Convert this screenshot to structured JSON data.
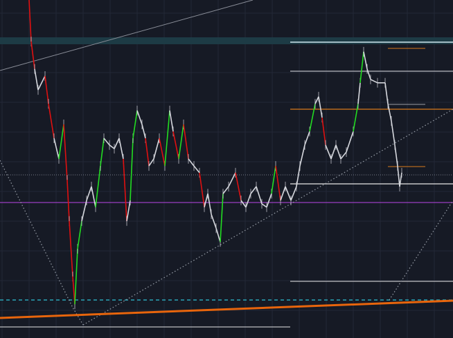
{
  "colors": {
    "background": "#161a25",
    "grid": "#232837",
    "price_line": "#d6d8de",
    "up": "#22dd22",
    "down": "#e01010",
    "zone_band": "#1d3b45",
    "zone_line": "#cfe8f0",
    "orange": "#e8650c",
    "orange_thin": "#d97a1a",
    "purple": "#9a3fc0",
    "teal_dashed": "#2aa6b8",
    "dotted": "#9aa0aa",
    "white_level": "#e8e8e8",
    "grey_level": "#9da0a8"
  },
  "chart_data": {
    "type": "line",
    "title": "",
    "xlabel": "",
    "ylabel": "",
    "grid": true,
    "legend": "none",
    "ylim": [
      0,
      100
    ],
    "xlim": [
      0,
      654
    ],
    "series": [
      {
        "x": [
          42,
          45,
          50,
          55,
          65,
          70,
          78,
          85,
          92,
          97,
          100,
          105,
          108,
          112,
          118,
          125,
          132,
          138,
          145,
          150,
          158,
          165,
          172,
          178,
          183,
          188,
          192,
          198,
          205,
          210,
          215,
          222,
          230,
          238,
          245,
          250,
          258,
          265,
          272,
          280,
          288,
          295,
          300,
          305,
          312,
          318,
          322,
          330,
          340,
          348,
          355,
          362,
          370,
          378,
          385,
          392,
          398,
          405,
          412,
          420,
          428,
          433,
          440,
          447,
          455,
          460,
          465,
          470,
          478,
          485,
          492,
          500,
          510,
          517,
          520,
          525,
          530,
          535,
          545,
          556,
          560,
          565,
          570,
          574,
          577,
          580
        ],
        "values": [
          100,
          87.7,
          79.6,
          73.4,
          77.5,
          69.3,
          59.1,
          53.0,
          63.2,
          46.8,
          34.6,
          18.2,
          10.0,
          26.4,
          34.6,
          40.7,
          44.8,
          38.7,
          50.9,
          59.1,
          57.1,
          56.0,
          59.1,
          53.0,
          34.6,
          40.7,
          59.1,
          67.3,
          63.2,
          59.1,
          50.9,
          53.0,
          59.1,
          50.9,
          67.3,
          61.1,
          53.0,
          63.2,
          53.0,
          50.9,
          48.9,
          38.7,
          42.7,
          36.6,
          32.5,
          28.4,
          42.7,
          44.8,
          48.9,
          40.7,
          38.7,
          42.7,
          44.8,
          39.7,
          38.7,
          42.7,
          50.9,
          40.7,
          44.8,
          40.7,
          44.8,
          50.9,
          57.1,
          61.1,
          69.3,
          71.4,
          65.2,
          57.1,
          53.0,
          57.1,
          53.0,
          55.0,
          61.1,
          69.3,
          75.5,
          84.7,
          79.6,
          76.5,
          75.5,
          75.5,
          69.3,
          64.2,
          57.1,
          50.9,
          44.8,
          48.9
        ]
      }
    ]
  }
}
